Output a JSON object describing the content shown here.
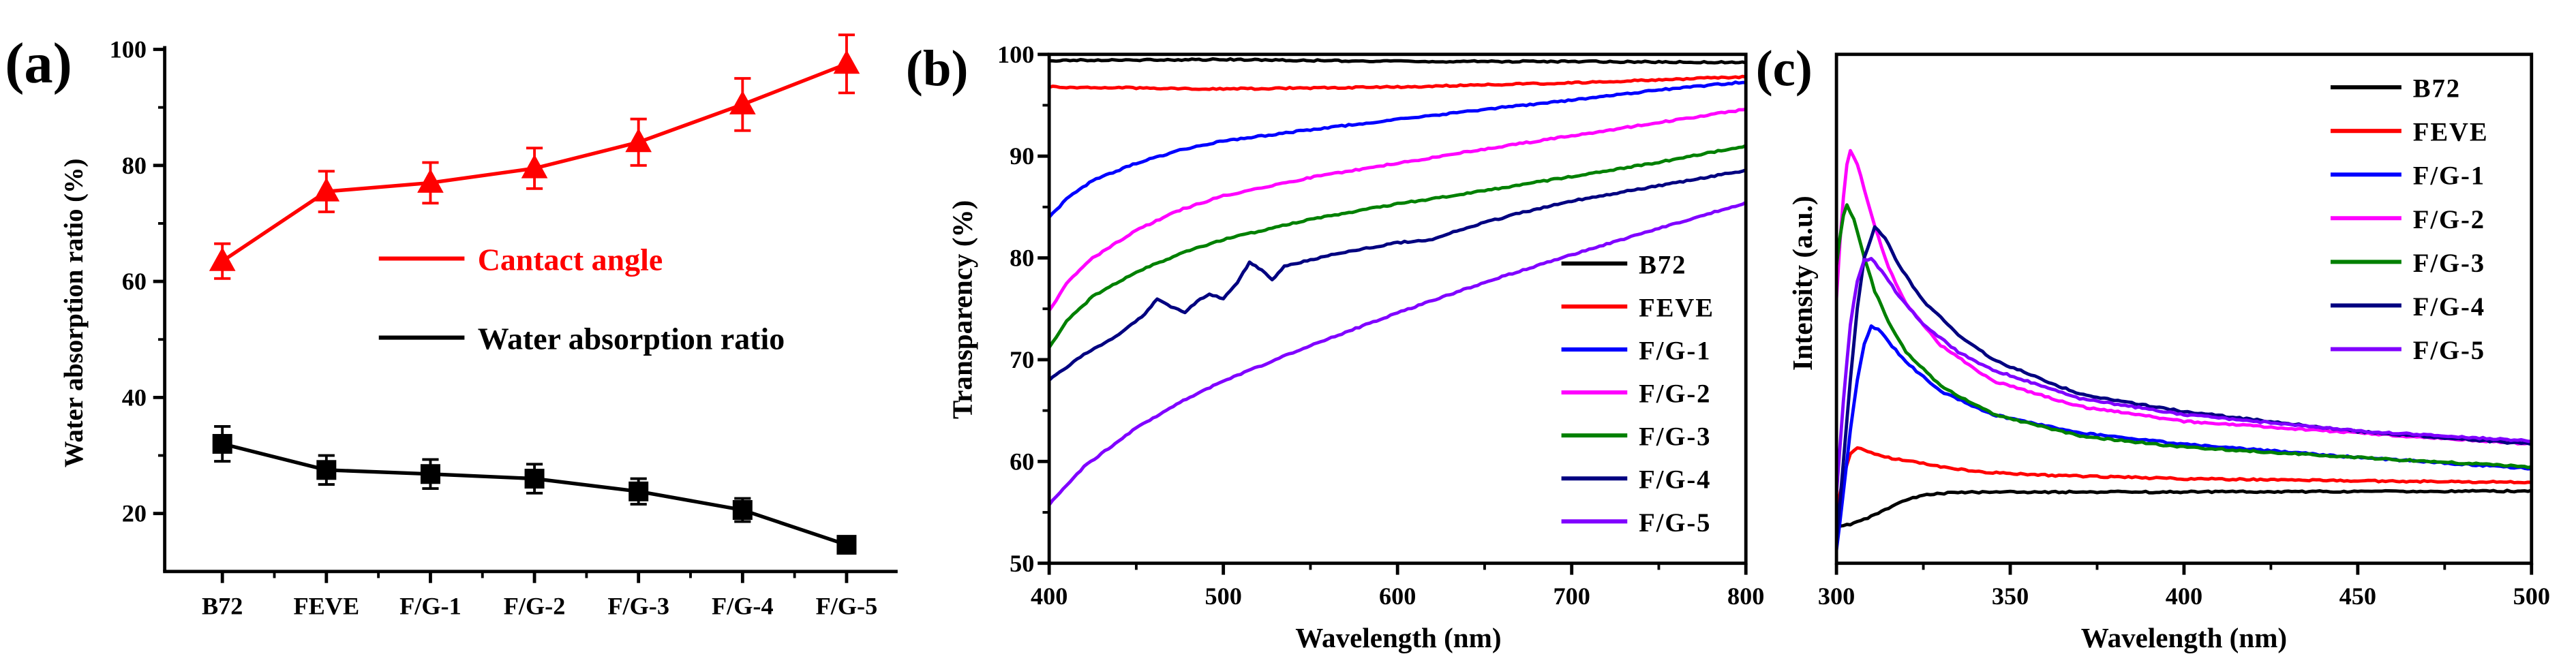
{
  "chart_data": [
    {
      "panel": "(a)",
      "type": "line",
      "ylabel": "Water absorption ratio (%)",
      "categories": [
        "B72",
        "FEVE",
        "F/G-1",
        "F/G-2",
        "F/G-3",
        "F/G-4",
        "F/G-5"
      ],
      "ylim": [
        10,
        100
      ],
      "yticks": [
        20,
        40,
        60,
        80,
        100
      ],
      "series": [
        {
          "name": "Cantact angle",
          "color": "#ff0000",
          "values": [
            63.5,
            75.5,
            77,
            79.5,
            84,
            90.5,
            97.5
          ],
          "errors": [
            3,
            3.5,
            3.5,
            3.5,
            4,
            4.5,
            5
          ]
        },
        {
          "name": "Water absorption ratio",
          "color": "#000000",
          "values": [
            32,
            27.5,
            26.8,
            26,
            23.8,
            20.6,
            14.6
          ],
          "errors": [
            3,
            2.5,
            2.5,
            2.5,
            2.2,
            2,
            1
          ]
        }
      ]
    },
    {
      "panel": "(b)",
      "type": "line",
      "xlabel": "Wavelength (nm)",
      "ylabel": "Transparency (%)",
      "xlim": [
        400,
        800
      ],
      "ylim": [
        50,
        100
      ],
      "xticks": [
        400,
        500,
        600,
        700,
        800
      ],
      "yticks": [
        50,
        60,
        70,
        80,
        90,
        100
      ],
      "series": [
        {
          "name": "B72",
          "color": "#000000",
          "points": [
            [
              400,
              99.4
            ],
            [
              500,
              99.5
            ],
            [
              600,
              99.3
            ],
            [
              700,
              99.3
            ],
            [
              800,
              99.2
            ]
          ]
        },
        {
          "name": "FEVE",
          "color": "#ff0000",
          "points": [
            [
              400,
              96.8
            ],
            [
              500,
              96.6
            ],
            [
              600,
              96.8
            ],
            [
              700,
              97.2
            ],
            [
              800,
              97.8
            ]
          ]
        },
        {
          "name": "F/G-1",
          "color": "#0000ff",
          "points": [
            [
              400,
              84.0
            ],
            [
              410,
              85.8
            ],
            [
              425,
              87.6
            ],
            [
              450,
              89.3
            ],
            [
              475,
              90.6
            ],
            [
              500,
              91.5
            ],
            [
              550,
              92.6
            ],
            [
              600,
              93.6
            ],
            [
              650,
              94.6
            ],
            [
              700,
              95.5
            ],
            [
              750,
              96.5
            ],
            [
              800,
              97.3
            ]
          ]
        },
        {
          "name": "F/G-2",
          "color": "#ff00ff",
          "points": [
            [
              400,
              74.8
            ],
            [
              410,
              77.5
            ],
            [
              425,
              80.0
            ],
            [
              450,
              82.7
            ],
            [
              475,
              84.7
            ],
            [
              500,
              86.1
            ],
            [
              550,
              87.9
            ],
            [
              600,
              89.3
            ],
            [
              650,
              90.7
            ],
            [
              700,
              92.0
            ],
            [
              750,
              93.3
            ],
            [
              800,
              94.6
            ]
          ]
        },
        {
          "name": "F/G-3",
          "color": "#008000",
          "points": [
            [
              400,
              71.2
            ],
            [
              410,
              73.8
            ],
            [
              425,
              76.2
            ],
            [
              450,
              78.6
            ],
            [
              475,
              80.4
            ],
            [
              500,
              81.8
            ],
            [
              550,
              83.8
            ],
            [
              600,
              85.3
            ],
            [
              650,
              86.6
            ],
            [
              700,
              88.0
            ],
            [
              750,
              89.4
            ],
            [
              800,
              91.0
            ]
          ]
        },
        {
          "name": "F/G-4",
          "color": "#000080",
          "points": [
            [
              400,
              68.0
            ],
            [
              420,
              70.5
            ],
            [
              440,
              72.5
            ],
            [
              455,
              74.5
            ],
            [
              462,
              76.0
            ],
            [
              470,
              75.2
            ],
            [
              478,
              74.6
            ],
            [
              485,
              75.8
            ],
            [
              492,
              76.4
            ],
            [
              500,
              76.0
            ],
            [
              508,
              77.5
            ],
            [
              515,
              79.6
            ],
            [
              522,
              78.8
            ],
            [
              528,
              77.8
            ],
            [
              535,
              79.2
            ],
            [
              550,
              79.8
            ],
            [
              570,
              80.6
            ],
            [
              600,
              81.5
            ],
            [
              620,
              81.8
            ],
            [
              640,
              83.0
            ],
            [
              670,
              84.4
            ],
            [
              700,
              85.6
            ],
            [
              750,
              87.1
            ],
            [
              800,
              88.6
            ]
          ]
        },
        {
          "name": "F/G-5",
          "color": "#8000ff",
          "points": [
            [
              400,
              55.8
            ],
            [
              420,
              59.5
            ],
            [
              450,
              63.3
            ],
            [
              475,
              65.8
            ],
            [
              500,
              67.9
            ],
            [
              550,
              71.4
            ],
            [
              600,
              74.6
            ],
            [
              650,
              77.6
            ],
            [
              700,
              80.3
            ],
            [
              750,
              82.9
            ],
            [
              800,
              85.4
            ]
          ]
        }
      ]
    },
    {
      "panel": "(c)",
      "type": "line",
      "xlabel": "Wavelength (nm)",
      "ylabel": "Intensity (a.u.)",
      "xlim": [
        300,
        500
      ],
      "ylim": [
        0,
        100
      ],
      "xticks": [
        300,
        350,
        400,
        450,
        500
      ],
      "yticks": [],
      "series": [
        {
          "name": "B72",
          "color": "#000000",
          "points": [
            [
              300,
              7.0
            ],
            [
              305,
              7.8
            ],
            [
              310,
              9.2
            ],
            [
              315,
              10.8
            ],
            [
              320,
              12.4
            ],
            [
              325,
              13.5
            ],
            [
              335,
              13.9
            ],
            [
              350,
              14.0
            ],
            [
              400,
              14.0
            ],
            [
              450,
              14.1
            ],
            [
              500,
              14.2
            ]
          ]
        },
        {
          "name": "FEVE",
          "color": "#ff0000",
          "points": [
            [
              300,
              10.5
            ],
            [
              302,
              17.0
            ],
            [
              304,
              21.5
            ],
            [
              306,
              22.8
            ],
            [
              309,
              22.0
            ],
            [
              312,
              21.2
            ],
            [
              316,
              20.6
            ],
            [
              320,
              20.2
            ],
            [
              330,
              19.0
            ],
            [
              340,
              18.0
            ],
            [
              360,
              17.3
            ],
            [
              400,
              16.6
            ],
            [
              450,
              16.2
            ],
            [
              500,
              15.9
            ]
          ]
        },
        {
          "name": "F/G-1",
          "color": "#0000ff",
          "points": [
            [
              300,
              2.5
            ],
            [
              302,
              14.0
            ],
            [
              304,
              26.0
            ],
            [
              306,
              36.0
            ],
            [
              308,
              43.0
            ],
            [
              310,
              46.5
            ],
            [
              312,
              46.0
            ],
            [
              315,
              43.5
            ],
            [
              320,
              39.5
            ],
            [
              330,
              33.8
            ],
            [
              345,
              29.2
            ],
            [
              370,
              25.6
            ],
            [
              400,
              23.4
            ],
            [
              450,
              20.8
            ],
            [
              500,
              18.6
            ]
          ]
        },
        {
          "name": "F/G-2",
          "color": "#ff00ff",
          "points": [
            [
              300,
              52.0
            ],
            [
              301,
              63.0
            ],
            [
              302,
              72.0
            ],
            [
              303,
              78.5
            ],
            [
              304,
              81.0
            ],
            [
              306,
              78.5
            ],
            [
              308,
              73.5
            ],
            [
              310,
              68.5
            ],
            [
              315,
              58.0
            ],
            [
              320,
              51.0
            ],
            [
              330,
              42.8
            ],
            [
              345,
              35.8
            ],
            [
              370,
              30.8
            ],
            [
              400,
              27.9
            ],
            [
              450,
              25.6
            ],
            [
              500,
              23.4
            ]
          ]
        },
        {
          "name": "F/G-3",
          "color": "#008000",
          "points": [
            [
              300,
              58.5
            ],
            [
              301,
              64.0
            ],
            [
              302,
              68.5
            ],
            [
              303,
              70.3
            ],
            [
              305,
              67.5
            ],
            [
              308,
              60.0
            ],
            [
              311,
              53.5
            ],
            [
              315,
              47.5
            ],
            [
              320,
              41.5
            ],
            [
              330,
              34.8
            ],
            [
              345,
              29.3
            ],
            [
              370,
              25.0
            ],
            [
              400,
              22.8
            ],
            [
              450,
              20.8
            ],
            [
              500,
              18.9
            ]
          ]
        },
        {
          "name": "F/G-4",
          "color": "#000080",
          "points": [
            [
              300,
              4.0
            ],
            [
              302,
              20.0
            ],
            [
              304,
              36.0
            ],
            [
              306,
              50.0
            ],
            [
              308,
              60.0
            ],
            [
              311,
              66.0
            ],
            [
              314,
              64.0
            ],
            [
              318,
              58.5
            ],
            [
              325,
              51.5
            ],
            [
              335,
              45.0
            ],
            [
              345,
              40.0
            ],
            [
              370,
              33.2
            ],
            [
              400,
              29.8
            ],
            [
              450,
              25.9
            ],
            [
              500,
              23.4
            ]
          ]
        },
        {
          "name": "F/G-5",
          "color": "#8000ff",
          "points": [
            [
              300,
              13.5
            ],
            [
              302,
              32.0
            ],
            [
              304,
              47.0
            ],
            [
              306,
              55.5
            ],
            [
              308,
              59.5
            ],
            [
              310,
              59.8
            ],
            [
              313,
              57.5
            ],
            [
              318,
              52.5
            ],
            [
              325,
              47.0
            ],
            [
              335,
              41.5
            ],
            [
              345,
              38.0
            ],
            [
              370,
              32.4
            ],
            [
              400,
              29.2
            ],
            [
              450,
              26.0
            ],
            [
              500,
              24.0
            ]
          ]
        }
      ]
    }
  ]
}
